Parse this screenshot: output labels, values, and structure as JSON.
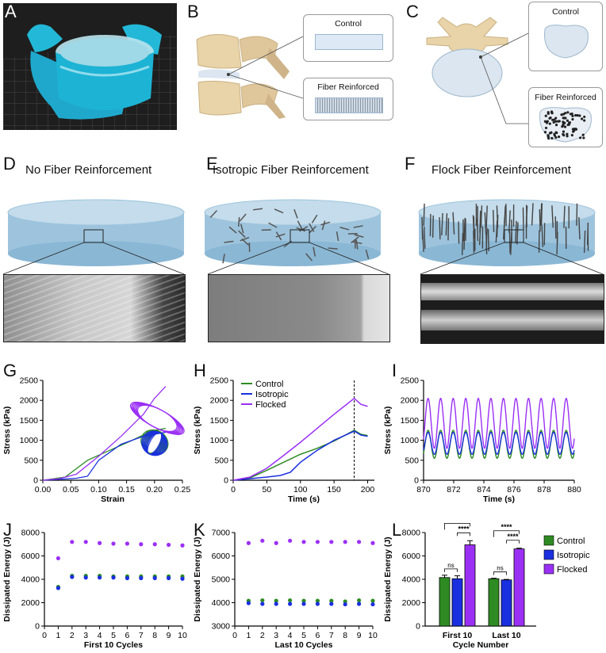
{
  "panel_letters": [
    "A",
    "B",
    "C",
    "D",
    "E",
    "F",
    "G",
    "H",
    "I",
    "J",
    "K",
    "L"
  ],
  "row1": {
    "b_control": "Control",
    "b_fiber": "Fiber Reinforced",
    "c_control": "Control",
    "c_fiber": "Fiber Reinforced"
  },
  "row2": {
    "d_title": "No Fiber Reinforcement",
    "e_title": "Isotropic Fiber Reinforcement",
    "f_title": "Flock Fiber Reinforcement"
  },
  "colors": {
    "control": "#2e8b23",
    "isotropic": "#1a2fe0",
    "flocked": "#9b30f5"
  },
  "chart_data": [
    {
      "panel": "G",
      "type": "line",
      "xlabel": "Strain",
      "ylabel": "Stress (kPa)",
      "xlim": [
        0,
        0.25
      ],
      "ylim": [
        0,
        2500
      ],
      "xticks": [
        "0.00",
        "0.05",
        "0.10",
        "0.15",
        "0.20",
        "0.25"
      ],
      "yticks": [
        "0",
        "500",
        "1000",
        "1500",
        "2000",
        "2500"
      ],
      "series": [
        {
          "key": "control",
          "x": [
            0,
            0.04,
            0.08,
            0.12,
            0.16,
            0.19,
            0.2,
            0.22,
            0.18,
            0.22
          ],
          "y": [
            0,
            80,
            500,
            750,
            1000,
            1200,
            1250,
            1300,
            600,
            1300
          ]
        },
        {
          "key": "isotropic",
          "x": [
            0,
            0.06,
            0.08,
            0.1,
            0.14,
            0.18,
            0.2,
            0.22,
            0.18,
            0.22
          ],
          "y": [
            0,
            50,
            100,
            500,
            900,
            1100,
            1150,
            1200,
            600,
            1250
          ]
        },
        {
          "key": "flocked",
          "x": [
            0,
            0.03,
            0.06,
            0.1,
            0.14,
            0.18,
            0.2,
            0.22,
            0.19,
            0.22
          ],
          "y": [
            0,
            40,
            150,
            600,
            1100,
            1650,
            2050,
            2350,
            800,
            2300
          ]
        }
      ]
    },
    {
      "panel": "H",
      "type": "line",
      "xlabel": "Time (s)",
      "ylabel": "Stress (kPa)",
      "xlim": [
        0,
        210
      ],
      "ylim": [
        0,
        2500
      ],
      "xticks": [
        "0",
        "50",
        "100",
        "150",
        "200"
      ],
      "yticks": [
        "0",
        "500",
        "1000",
        "1500",
        "2000",
        "2500"
      ],
      "legend": [
        "Control",
        "Isotropic",
        "Flocked"
      ],
      "vline_x": 180,
      "series": [
        {
          "key": "control",
          "name": "Control",
          "x": [
            0,
            25,
            50,
            75,
            100,
            125,
            150,
            180,
            190,
            200
          ],
          "y": [
            0,
            60,
            250,
            450,
            650,
            800,
            980,
            1250,
            1150,
            1120
          ]
        },
        {
          "key": "isotropic",
          "name": "Isotropic",
          "x": [
            0,
            25,
            50,
            70,
            85,
            100,
            125,
            150,
            180,
            190,
            200
          ],
          "y": [
            0,
            40,
            80,
            120,
            200,
            450,
            750,
            1000,
            1230,
            1130,
            1100
          ]
        },
        {
          "key": "flocked",
          "name": "Flocked",
          "x": [
            0,
            25,
            50,
            75,
            100,
            125,
            150,
            180,
            190,
            200
          ],
          "y": [
            0,
            80,
            300,
            620,
            950,
            1300,
            1650,
            2050,
            1900,
            1850
          ]
        }
      ]
    },
    {
      "panel": "I",
      "type": "line",
      "xlabel": "Time (s)",
      "ylabel": "Stress (kPa)",
      "xlim": [
        870,
        880
      ],
      "ylim": [
        0,
        2500
      ],
      "xticks": [
        "870",
        "872",
        "874",
        "876",
        "878",
        "880"
      ],
      "yticks": [
        "0",
        "500",
        "1000",
        "1500",
        "2000",
        "2500"
      ],
      "period": 0.833,
      "series": [
        {
          "key": "flocked",
          "min": 800,
          "max": 2050
        },
        {
          "key": "control",
          "min": 550,
          "max": 1250
        },
        {
          "key": "isotropic",
          "min": 650,
          "max": 1200
        }
      ]
    },
    {
      "panel": "J",
      "type": "scatter",
      "xlabel": "First 10 Cycles",
      "ylabel": "Dissipated Energy (J)",
      "xlim": [
        0,
        10
      ],
      "ylim": [
        0,
        8000
      ],
      "xticks": [
        "0",
        "1",
        "2",
        "3",
        "4",
        "5",
        "6",
        "7",
        "8",
        "9",
        "10"
      ],
      "yticks": [
        "0",
        "2000",
        "4000",
        "6000",
        "8000"
      ],
      "x": [
        1,
        2,
        3,
        4,
        5,
        6,
        7,
        8,
        9,
        10
      ],
      "series": [
        {
          "key": "flocked",
          "y": [
            5800,
            7200,
            7200,
            7100,
            7050,
            7050,
            7000,
            7000,
            6950,
            6900
          ]
        },
        {
          "key": "control",
          "y": [
            3350,
            4300,
            4300,
            4300,
            4250,
            4250,
            4250,
            4250,
            4250,
            4250
          ]
        },
        {
          "key": "isotropic",
          "y": [
            3250,
            4200,
            4150,
            4150,
            4150,
            4100,
            4100,
            4100,
            4100,
            4050
          ]
        }
      ]
    },
    {
      "panel": "K",
      "type": "scatter",
      "xlabel": "Last 10 Cycles",
      "ylabel": "Dissipated Energy (J)",
      "xlim": [
        0,
        10
      ],
      "ylim": [
        3000,
        7000
      ],
      "xticks": [
        "0",
        "1",
        "2",
        "3",
        "4",
        "5",
        "6",
        "7",
        "8",
        "9",
        "10"
      ],
      "yticks": [
        "3000",
        "4000",
        "5000",
        "6000",
        "7000"
      ],
      "x": [
        1,
        2,
        3,
        4,
        5,
        6,
        7,
        8,
        9,
        10
      ],
      "series": [
        {
          "key": "flocked",
          "y": [
            6550,
            6650,
            6550,
            6650,
            6600,
            6600,
            6600,
            6600,
            6600,
            6550
          ]
        },
        {
          "key": "control",
          "y": [
            4080,
            4100,
            4080,
            4100,
            4080,
            4080,
            4080,
            4050,
            4100,
            4080
          ]
        },
        {
          "key": "isotropic",
          "y": [
            3980,
            3950,
            3950,
            3950,
            3950,
            3950,
            3950,
            3930,
            3950,
            3930
          ]
        }
      ]
    },
    {
      "panel": "L",
      "type": "bar",
      "xlabel": "Cycle Number",
      "ylabel": "Dissipated Energy (J)",
      "ylim": [
        0,
        8000
      ],
      "yticks": [
        "0",
        "2000",
        "4000",
        "6000",
        "8000"
      ],
      "categories": [
        "First 10",
        "Last 10"
      ],
      "legend": [
        "Control",
        "Isotropic",
        "Flocked"
      ],
      "series": [
        {
          "key": "control",
          "name": "Control",
          "values": [
            4150,
            4050
          ],
          "err": [
            200,
            40
          ]
        },
        {
          "key": "isotropic",
          "name": "Isotropic",
          "values": [
            4050,
            3950
          ],
          "err": [
            250,
            40
          ]
        },
        {
          "key": "flocked",
          "name": "Flocked",
          "values": [
            6950,
            6600
          ],
          "err": [
            350,
            60
          ]
        }
      ],
      "annotations": [
        "****",
        "ns",
        "****",
        "****",
        "ns",
        "****"
      ]
    }
  ]
}
